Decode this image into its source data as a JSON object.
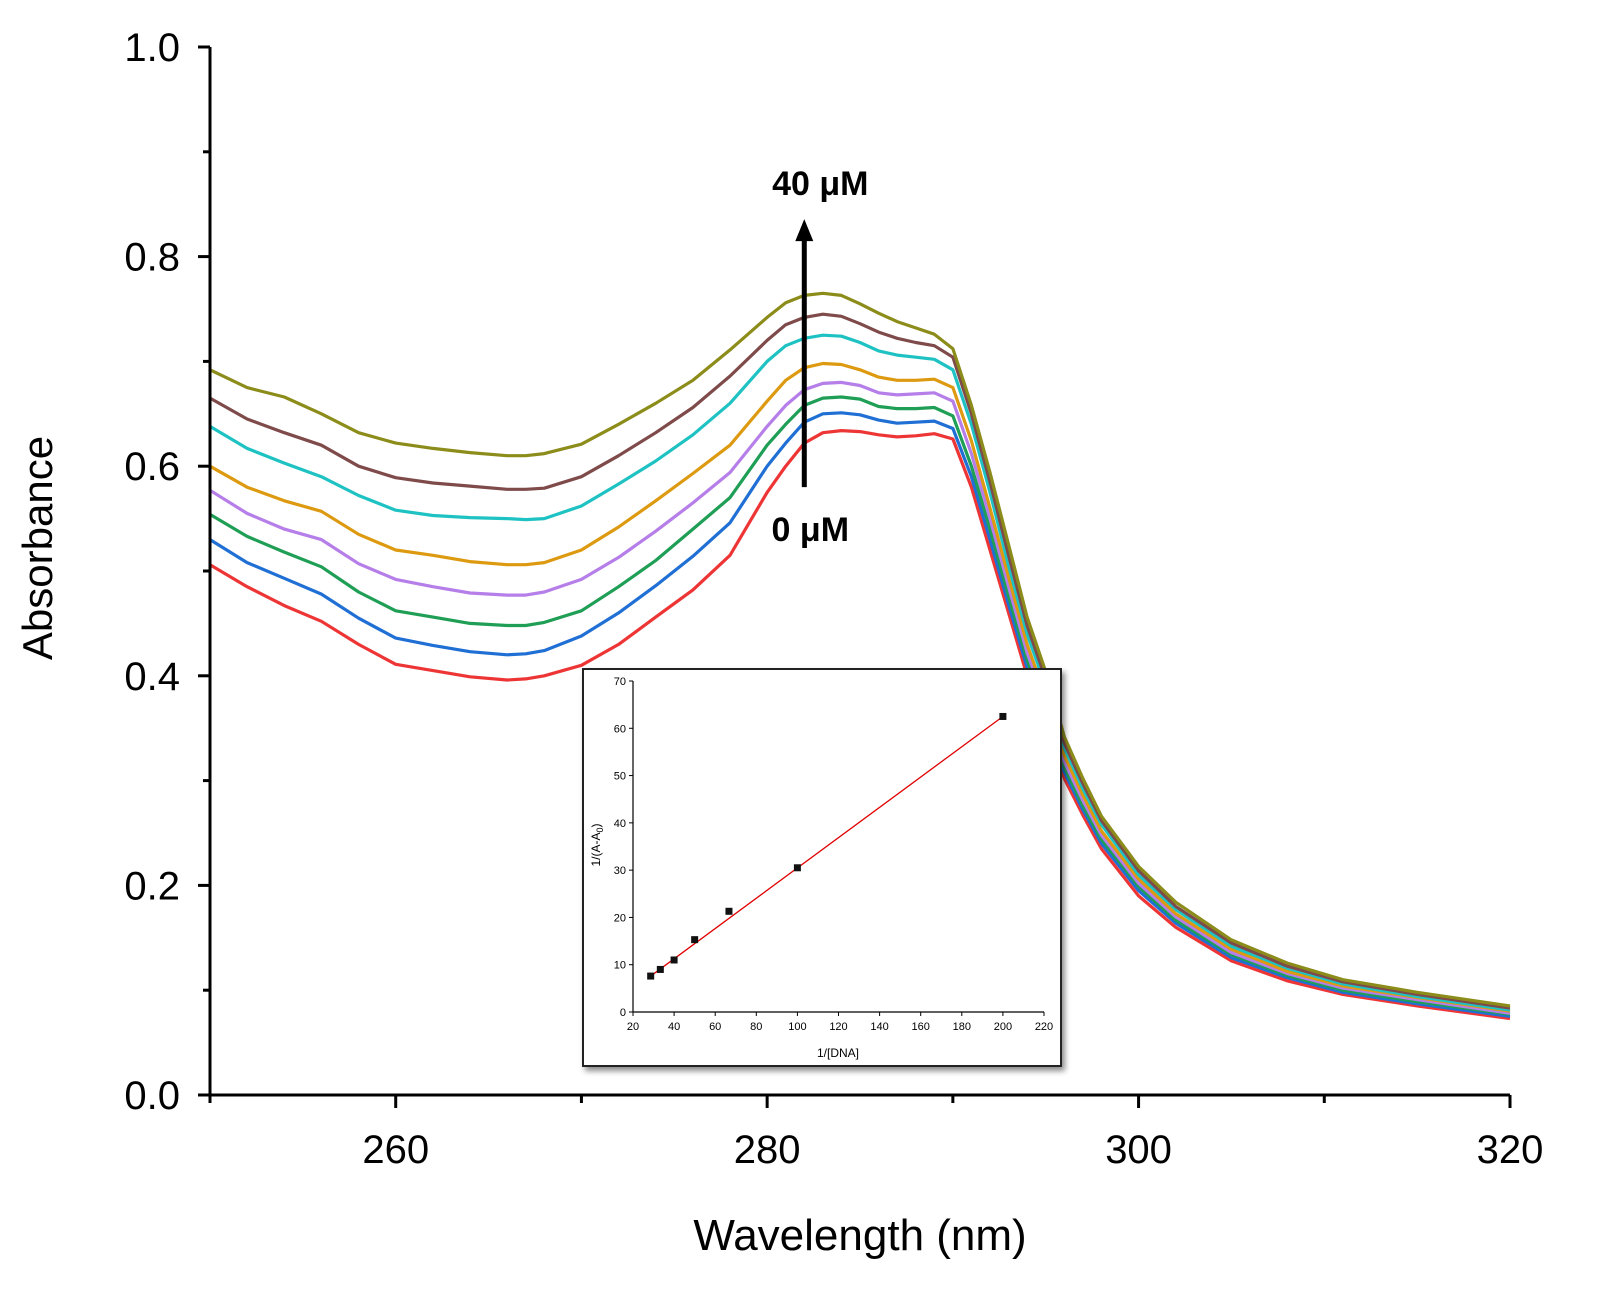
{
  "chart_data": [
    {
      "type": "line",
      "title": "",
      "xlabel": "Wavelength (nm)",
      "ylabel": "Absorbance",
      "xlim": [
        250,
        320
      ],
      "ylim": [
        0.0,
        1.0
      ],
      "xticks": [
        260,
        280,
        300,
        320
      ],
      "xtick_labels": [
        "260",
        "280",
        "300",
        "320"
      ],
      "yticks": [
        0.0,
        0.2,
        0.4,
        0.6,
        0.8,
        1.0
      ],
      "ytick_labels": [
        "0.0",
        "0.2",
        "0.4",
        "0.6",
        "0.8",
        "1.0"
      ],
      "grid": false,
      "legend": "none",
      "annotations": {
        "top_label": "40 μM",
        "bottom_label": "0 μM",
        "arrow_x": 282,
        "arrow_from_y": 0.58,
        "arrow_to_y": 0.83,
        "top_label_y": 0.87,
        "bottom_label_y": 0.54
      },
      "x": [
        250,
        252,
        254,
        256,
        258,
        260,
        262,
        264,
        266,
        267,
        268,
        270,
        272,
        274,
        276,
        278,
        280,
        281,
        282,
        283,
        284,
        285,
        286,
        287,
        288,
        289,
        290,
        291,
        292,
        293,
        294,
        295,
        296,
        297,
        298,
        300,
        302,
        305,
        308,
        311,
        315,
        320
      ],
      "series": [
        {
          "color": "#ee3535",
          "values": [
            0.506,
            0.485,
            0.467,
            0.452,
            0.43,
            0.411,
            0.405,
            0.399,
            0.396,
            0.397,
            0.4,
            0.41,
            0.43,
            0.456,
            0.482,
            0.515,
            0.575,
            0.6,
            0.622,
            0.632,
            0.634,
            0.633,
            0.63,
            0.628,
            0.629,
            0.631,
            0.626,
            0.58,
            0.52,
            0.46,
            0.4,
            0.355,
            0.302,
            0.267,
            0.235,
            0.19,
            0.16,
            0.128,
            0.109,
            0.096,
            0.085,
            0.073
          ]
        },
        {
          "color": "#1f6fd4",
          "values": [
            0.53,
            0.508,
            0.493,
            0.478,
            0.455,
            0.436,
            0.429,
            0.423,
            0.42,
            0.421,
            0.424,
            0.438,
            0.46,
            0.486,
            0.514,
            0.546,
            0.6,
            0.622,
            0.642,
            0.65,
            0.651,
            0.649,
            0.644,
            0.641,
            0.642,
            0.643,
            0.636,
            0.59,
            0.53,
            0.468,
            0.408,
            0.362,
            0.308,
            0.272,
            0.24,
            0.195,
            0.164,
            0.131,
            0.112,
            0.098,
            0.087,
            0.075
          ]
        },
        {
          "color": "#1f9e55",
          "values": [
            0.554,
            0.533,
            0.518,
            0.504,
            0.48,
            0.462,
            0.456,
            0.45,
            0.448,
            0.448,
            0.451,
            0.462,
            0.485,
            0.51,
            0.54,
            0.57,
            0.62,
            0.64,
            0.658,
            0.665,
            0.666,
            0.664,
            0.657,
            0.655,
            0.655,
            0.656,
            0.648,
            0.6,
            0.54,
            0.476,
            0.415,
            0.368,
            0.313,
            0.276,
            0.244,
            0.199,
            0.167,
            0.134,
            0.114,
            0.1,
            0.089,
            0.077
          ]
        },
        {
          "color": "#b57ee8",
          "values": [
            0.577,
            0.555,
            0.54,
            0.53,
            0.507,
            0.492,
            0.485,
            0.479,
            0.477,
            0.477,
            0.48,
            0.492,
            0.513,
            0.538,
            0.565,
            0.594,
            0.638,
            0.658,
            0.673,
            0.679,
            0.68,
            0.677,
            0.67,
            0.668,
            0.669,
            0.67,
            0.662,
            0.612,
            0.55,
            0.485,
            0.422,
            0.374,
            0.318,
            0.281,
            0.248,
            0.202,
            0.17,
            0.136,
            0.116,
            0.102,
            0.091,
            0.078
          ]
        },
        {
          "color": "#dd9a10",
          "values": [
            0.6,
            0.58,
            0.567,
            0.557,
            0.535,
            0.52,
            0.515,
            0.509,
            0.506,
            0.506,
            0.508,
            0.52,
            0.542,
            0.567,
            0.593,
            0.62,
            0.662,
            0.682,
            0.694,
            0.698,
            0.697,
            0.692,
            0.685,
            0.682,
            0.682,
            0.683,
            0.675,
            0.624,
            0.56,
            0.494,
            0.43,
            0.38,
            0.324,
            0.286,
            0.252,
            0.206,
            0.173,
            0.139,
            0.118,
            0.104,
            0.093,
            0.08
          ]
        },
        {
          "color": "#1ec2c2",
          "values": [
            0.638,
            0.617,
            0.603,
            0.59,
            0.572,
            0.558,
            0.553,
            0.551,
            0.55,
            0.549,
            0.55,
            0.562,
            0.583,
            0.605,
            0.63,
            0.66,
            0.7,
            0.715,
            0.722,
            0.725,
            0.724,
            0.718,
            0.71,
            0.706,
            0.704,
            0.702,
            0.692,
            0.64,
            0.575,
            0.505,
            0.44,
            0.39,
            0.331,
            0.292,
            0.258,
            0.21,
            0.177,
            0.142,
            0.121,
            0.106,
            0.094,
            0.081
          ]
        },
        {
          "color": "#7f4a4a",
          "values": [
            0.665,
            0.645,
            0.632,
            0.62,
            0.6,
            0.589,
            0.584,
            0.581,
            0.578,
            0.578,
            0.579,
            0.59,
            0.61,
            0.632,
            0.656,
            0.686,
            0.72,
            0.735,
            0.742,
            0.745,
            0.743,
            0.736,
            0.728,
            0.722,
            0.718,
            0.715,
            0.704,
            0.65,
            0.585,
            0.515,
            0.448,
            0.397,
            0.336,
            0.297,
            0.262,
            0.214,
            0.18,
            0.145,
            0.123,
            0.108,
            0.096,
            0.083
          ]
        },
        {
          "color": "#8c8c1a",
          "values": [
            0.692,
            0.675,
            0.666,
            0.65,
            0.632,
            0.622,
            0.617,
            0.613,
            0.61,
            0.61,
            0.612,
            0.621,
            0.64,
            0.66,
            0.682,
            0.711,
            0.742,
            0.756,
            0.763,
            0.765,
            0.763,
            0.755,
            0.746,
            0.738,
            0.732,
            0.726,
            0.712,
            0.658,
            0.594,
            0.525,
            0.456,
            0.404,
            0.342,
            0.302,
            0.266,
            0.218,
            0.184,
            0.148,
            0.126,
            0.11,
            0.098,
            0.085
          ]
        }
      ]
    },
    {
      "type": "scatter",
      "title": "",
      "xlabel": "1/[DNA]",
      "ylabel": "1/(A-A",
      "ylabel_sub": "0",
      "ylabel_end": ")",
      "xlim": [
        20,
        220
      ],
      "ylim": [
        0,
        70
      ],
      "xticks": [
        20,
        40,
        60,
        80,
        100,
        120,
        140,
        160,
        180,
        200,
        220
      ],
      "xtick_labels": [
        "20",
        "40",
        "60",
        "80",
        "100",
        "120",
        "140",
        "160",
        "180",
        "200",
        "220"
      ],
      "yticks": [
        0,
        10,
        20,
        30,
        40,
        50,
        60,
        70
      ],
      "ytick_labels": [
        "0",
        "10",
        "20",
        "30",
        "40",
        "50",
        "60",
        "70"
      ],
      "x": [
        28.6,
        33.3,
        40,
        50,
        66.7,
        100,
        200
      ],
      "y": [
        7.6,
        9.0,
        11.0,
        15.3,
        21.3,
        30.5,
        62.5
      ],
      "fit_line": {
        "x": [
          28.6,
          200
        ],
        "y": [
          7.6,
          62.5
        ],
        "color": "#e00000"
      }
    }
  ]
}
